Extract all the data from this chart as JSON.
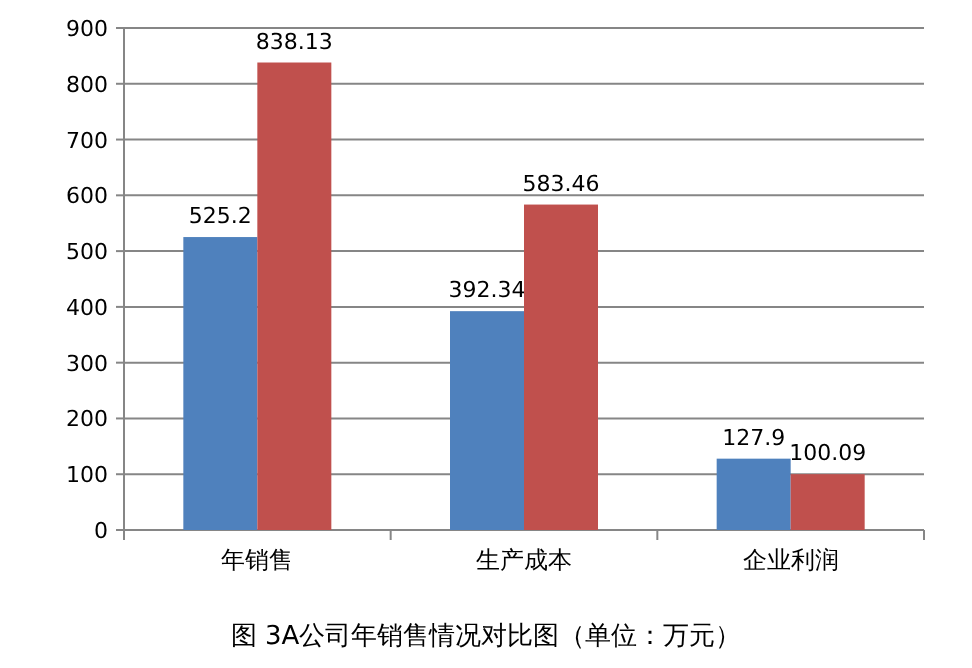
{
  "chart_data": {
    "type": "bar",
    "categories": [
      "年销售",
      "生产成本",
      "企业利润"
    ],
    "series": [
      {
        "color": "#4f81bd",
        "values": [
          525.2,
          392.34,
          127.9
        ]
      },
      {
        "color": "#c0504d",
        "values": [
          838.13,
          583.46,
          100.09
        ]
      }
    ],
    "ylim": [
      0,
      900
    ],
    "yticks": [
      0,
      100,
      200,
      300,
      400,
      500,
      600,
      700,
      800,
      900
    ],
    "grid": "y",
    "data_labels": true,
    "annotations": [
      "图 3A公司年销售情况对比图（单位：万元）"
    ]
  }
}
